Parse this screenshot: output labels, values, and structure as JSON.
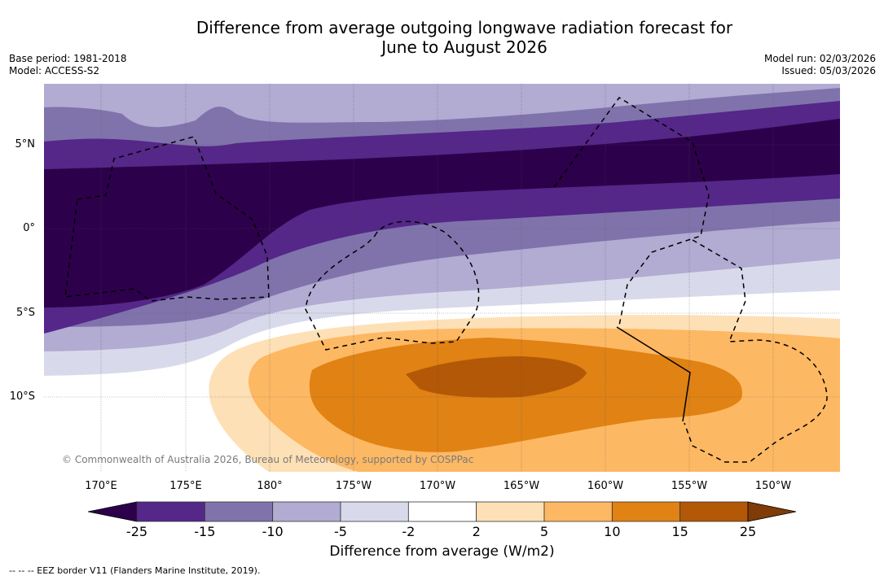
{
  "header": {
    "title_line1": "Difference from average outgoing longwave radiation forecast for",
    "title_line2": "June to August 2026",
    "base_period": "Base period: 1981-2018",
    "model": "Model: ACCESS-S2",
    "model_run": "Model run: 02/03/2026",
    "issued": "Issued: 05/03/2026"
  },
  "map": {
    "lat_labels": [
      "5°N",
      "0°",
      "5°S",
      "10°S"
    ],
    "lon_labels": [
      "170°E",
      "175°E",
      "180°",
      "175°W",
      "170°W",
      "165°W",
      "160°W",
      "155°W",
      "150°W"
    ],
    "copyright": "© Commonwealth of Australia 2026, Bureau of Meteorology, supported by COSPPac"
  },
  "colorbar": {
    "ticks": [
      "-25",
      "-15",
      "-10",
      "-5",
      "-2",
      "2",
      "5",
      "10",
      "15",
      "25"
    ],
    "label": "Difference from average (W/m2)",
    "colors": {
      "below_min": "#2d004b",
      "bins": [
        "#542788",
        "#8073ac",
        "#b2abd2",
        "#d8daeb",
        "#ffffff",
        "#fee0b6",
        "#fdb863",
        "#e08214",
        "#b35806"
      ],
      "above_max": "#7f3b08"
    }
  },
  "footer": {
    "eez_note": "--  --  -- EEZ border V11 (Flanders Marine Institute, 2019)."
  },
  "chart_data": {
    "type": "heatmap",
    "title": "Difference from average outgoing longwave radiation forecast for June to August 2026",
    "units": "W/m2",
    "region": {
      "lon_range": [
        "167°E",
        "147°W"
      ],
      "lat_range": [
        "14.5°S",
        "8.5°N"
      ]
    },
    "levels": [
      -25,
      -15,
      -10,
      -5,
      -2,
      2,
      5,
      10,
      15,
      25
    ],
    "features": [
      {
        "description": "Strong negative anomaly band (< -25) along equator north, roughly 3.5°N–5°N spanning domain; extends south to ~4.5°S in west (170°E–180°)",
        "min_value": "< -25"
      },
      {
        "description": "Positive anomaly maximum (15 to 25) centred near 9°S, 172°W–162°W",
        "max_value": "15–25"
      },
      {
        "description": "Positive anomaly region (> 2) across 6°S–14°S from 177°E eastward"
      }
    ],
    "legend": "colorbar-bottom"
  }
}
